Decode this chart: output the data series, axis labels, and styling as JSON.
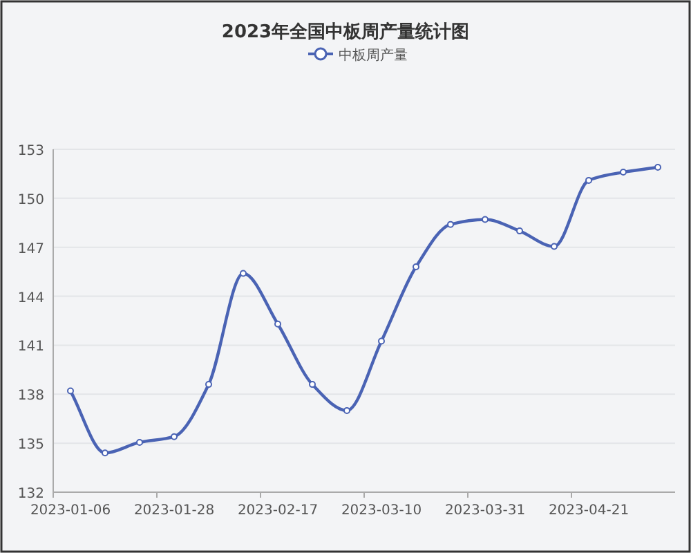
{
  "chart_data": {
    "type": "line",
    "title": "2023年全国中板周产量统计图",
    "categories": [
      "2023-01-06",
      null,
      null,
      "2023-01-28",
      null,
      null,
      "2023-02-17",
      null,
      null,
      "2023-03-10",
      null,
      null,
      "2023-03-31",
      null,
      null,
      "2023-04-21",
      null,
      null
    ],
    "series": [
      {
        "name": "中板周产量",
        "color": "#4a63b4",
        "values": [
          138.2,
          134.4,
          135.05,
          135.4,
          138.6,
          145.4,
          142.3,
          138.6,
          137.0,
          141.25,
          145.8,
          148.4,
          148.7,
          148.0,
          147.05,
          151.1,
          151.6,
          151.9
        ]
      }
    ],
    "ylim": [
      132,
      153
    ],
    "yticks": [
      132,
      135,
      138,
      141,
      144,
      147,
      150,
      153
    ],
    "grid": "y",
    "legend": "top",
    "marker": "circle"
  }
}
